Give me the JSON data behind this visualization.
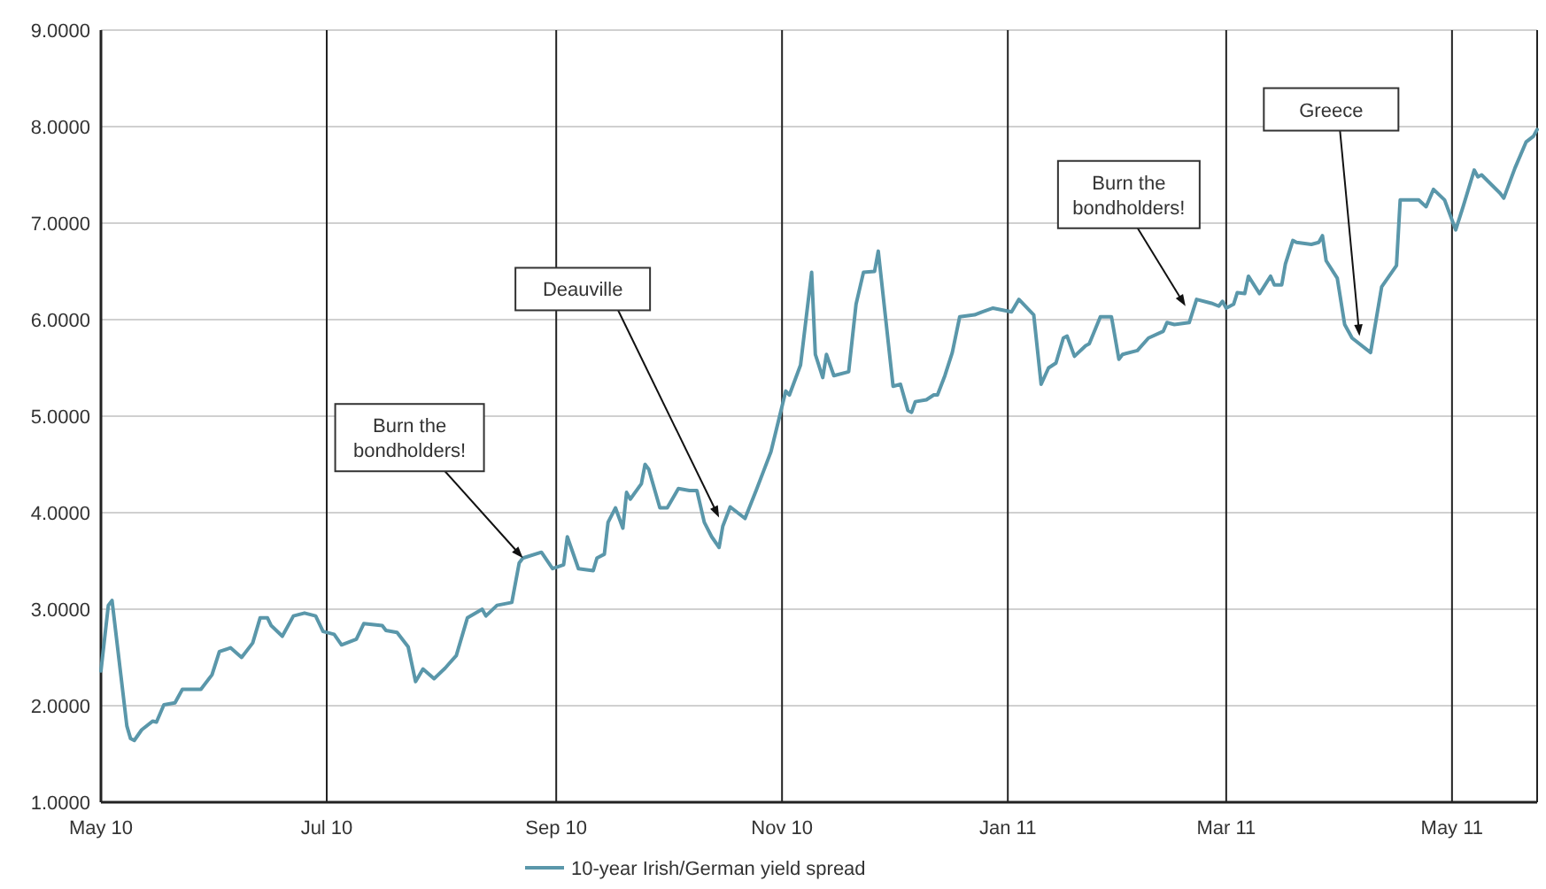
{
  "chart_data": {
    "type": "line",
    "grid": true,
    "legend": "bottom",
    "marker": "none",
    "line_style": "solid",
    "ylim": [
      1,
      9
    ],
    "yticks": [
      {
        "value": 1,
        "label": "1.0000"
      },
      {
        "value": 2,
        "label": "2.0000"
      },
      {
        "value": 3,
        "label": "3.0000"
      },
      {
        "value": 4,
        "label": "4.0000"
      },
      {
        "value": 5,
        "label": "5.0000"
      },
      {
        "value": 6,
        "label": "6.0000"
      },
      {
        "value": 7,
        "label": "7.0000"
      },
      {
        "value": 8,
        "label": "8.0000"
      },
      {
        "value": 9,
        "label": "9.0000"
      }
    ],
    "xlim": [
      "2010-05-01",
      "2011-05-24"
    ],
    "xticks": [
      {
        "value": "2010-05-01",
        "label": "May 10"
      },
      {
        "value": "2010-07-01",
        "label": "Jul 10"
      },
      {
        "value": "2010-09-01",
        "label": "Sep 10"
      },
      {
        "value": "2010-11-01",
        "label": "Nov 10"
      },
      {
        "value": "2011-01-01",
        "label": "Jan 11"
      },
      {
        "value": "2011-03-01",
        "label": "Mar 11"
      },
      {
        "value": "2011-05-01",
        "label": "May 11"
      }
    ],
    "annotations": [
      {
        "text": "Burn the bondholders!",
        "x": "2010-08-23",
        "y": 3.53
      },
      {
        "text": "Deauville",
        "x": "2010-10-15",
        "y": 3.95
      },
      {
        "text": "Burn the bondholders!",
        "x": "2011-02-18",
        "y": 6.14
      },
      {
        "text": "Greece",
        "x": "2011-04-06",
        "y": 5.83
      }
    ],
    "x": [
      "2010-05-01",
      "2010-05-03",
      "2010-05-04",
      "2010-05-08",
      "2010-05-09",
      "2010-05-10",
      "2010-05-12",
      "2010-05-15",
      "2010-05-16",
      "2010-05-18",
      "2010-05-21",
      "2010-05-23",
      "2010-05-28",
      "2010-05-31",
      "2010-06-02",
      "2010-06-05",
      "2010-06-08",
      "2010-06-11",
      "2010-06-13",
      "2010-06-15",
      "2010-06-16",
      "2010-06-19",
      "2010-06-22",
      "2010-06-25",
      "2010-06-28",
      "2010-06-30",
      "2010-07-03",
      "2010-07-05",
      "2010-07-09",
      "2010-07-11",
      "2010-07-16",
      "2010-07-17",
      "2010-07-20",
      "2010-07-23",
      "2010-07-25",
      "2010-07-27",
      "2010-07-30",
      "2010-08-02",
      "2010-08-05",
      "2010-08-08",
      "2010-08-12",
      "2010-08-13",
      "2010-08-16",
      "2010-08-20",
      "2010-08-22",
      "2010-08-23",
      "2010-08-28",
      "2010-08-31",
      "2010-09-03",
      "2010-09-04",
      "2010-09-07",
      "2010-09-11",
      "2010-09-12",
      "2010-09-14",
      "2010-09-15",
      "2010-09-17",
      "2010-09-19",
      "2010-09-20",
      "2010-09-21",
      "2010-09-24",
      "2010-09-25",
      "2010-09-26",
      "2010-09-29",
      "2010-10-01",
      "2010-10-04",
      "2010-10-07",
      "2010-10-09",
      "2010-10-11",
      "2010-10-13",
      "2010-10-15",
      "2010-10-16",
      "2010-10-18",
      "2010-10-22",
      "2010-10-25",
      "2010-10-27",
      "2010-10-29",
      "2010-11-02",
      "2010-11-03",
      "2010-11-06",
      "2010-11-09",
      "2010-11-10",
      "2010-11-12",
      "2010-11-13",
      "2010-11-15",
      "2010-11-19",
      "2010-11-21",
      "2010-11-23",
      "2010-11-26",
      "2010-11-27",
      "2010-12-01",
      "2010-12-03",
      "2010-12-05",
      "2010-12-06",
      "2010-12-07",
      "2010-12-10",
      "2010-12-12",
      "2010-12-13",
      "2010-12-15",
      "2010-12-17",
      "2010-12-19",
      "2010-12-23",
      "2010-12-25",
      "2010-12-28",
      "2011-01-02",
      "2011-01-04",
      "2011-01-08",
      "2011-01-10",
      "2011-01-12",
      "2011-01-14",
      "2011-01-16",
      "2011-01-17",
      "2011-01-19",
      "2011-01-22",
      "2011-01-23",
      "2011-01-26",
      "2011-01-29",
      "2011-01-31",
      "2011-02-01",
      "2011-02-05",
      "2011-02-08",
      "2011-02-12",
      "2011-02-13",
      "2011-02-15",
      "2011-02-19",
      "2011-02-21",
      "2011-02-25",
      "2011-02-27",
      "2011-02-28",
      "2011-03-01",
      "2011-03-03",
      "2011-03-04",
      "2011-03-06",
      "2011-03-07",
      "2011-03-10",
      "2011-03-13",
      "2011-03-14",
      "2011-03-16",
      "2011-03-17",
      "2011-03-19",
      "2011-03-20",
      "2011-03-24",
      "2011-03-26",
      "2011-03-27",
      "2011-03-28",
      "2011-03-31",
      "2011-04-02",
      "2011-04-04",
      "2011-04-09",
      "2011-04-12",
      "2011-04-16",
      "2011-04-17",
      "2011-04-22",
      "2011-04-24",
      "2011-04-26",
      "2011-04-29",
      "2011-05-02",
      "2011-05-04",
      "2011-05-07",
      "2011-05-08",
      "2011-05-09",
      "2011-05-14",
      "2011-05-15",
      "2011-05-18",
      "2011-05-21",
      "2011-05-23",
      "2011-05-24"
    ],
    "series": [
      {
        "name": "10-year Irish/German yield spread",
        "color": "#5a97aa",
        "values": [
          2.36,
          3.04,
          3.09,
          1.79,
          1.66,
          1.64,
          1.75,
          1.84,
          1.83,
          2.01,
          2.03,
          2.17,
          2.17,
          2.32,
          2.56,
          2.6,
          2.5,
          2.65,
          2.91,
          2.91,
          2.83,
          2.72,
          2.93,
          2.96,
          2.93,
          2.77,
          2.74,
          2.63,
          2.69,
          2.85,
          2.83,
          2.78,
          2.76,
          2.61,
          2.25,
          2.38,
          2.28,
          2.39,
          2.52,
          2.91,
          3.0,
          2.93,
          3.04,
          3.07,
          3.48,
          3.53,
          3.59,
          3.42,
          3.46,
          3.75,
          3.42,
          3.4,
          3.53,
          3.57,
          3.9,
          4.05,
          3.84,
          4.21,
          4.14,
          4.3,
          4.5,
          4.45,
          4.05,
          4.05,
          4.25,
          4.23,
          4.23,
          3.9,
          3.75,
          3.64,
          3.86,
          4.06,
          3.94,
          4.23,
          4.43,
          4.63,
          5.26,
          5.22,
          5.53,
          6.49,
          5.64,
          5.4,
          5.64,
          5.42,
          5.46,
          6.16,
          6.49,
          6.5,
          6.71,
          5.31,
          5.33,
          5.06,
          5.04,
          5.15,
          5.17,
          5.22,
          5.22,
          5.42,
          5.66,
          6.03,
          6.05,
          6.08,
          6.12,
          6.08,
          6.21,
          6.05,
          5.33,
          5.5,
          5.55,
          5.81,
          5.83,
          5.62,
          5.73,
          5.75,
          6.03,
          6.03,
          5.59,
          5.64,
          5.68,
          5.81,
          5.88,
          5.97,
          5.95,
          5.97,
          6.21,
          6.17,
          6.14,
          6.19,
          6.12,
          6.16,
          6.28,
          6.27,
          6.45,
          6.27,
          6.45,
          6.36,
          6.36,
          6.58,
          6.82,
          6.8,
          6.78,
          6.8,
          6.87,
          6.61,
          6.43,
          5.95,
          5.81,
          5.66,
          6.34,
          6.56,
          7.24,
          7.24,
          7.17,
          7.35,
          7.24,
          6.93,
          7.17,
          7.55,
          7.48,
          7.5,
          7.31,
          7.26,
          7.57,
          7.84,
          7.9,
          7.97
        ]
      }
    ]
  }
}
